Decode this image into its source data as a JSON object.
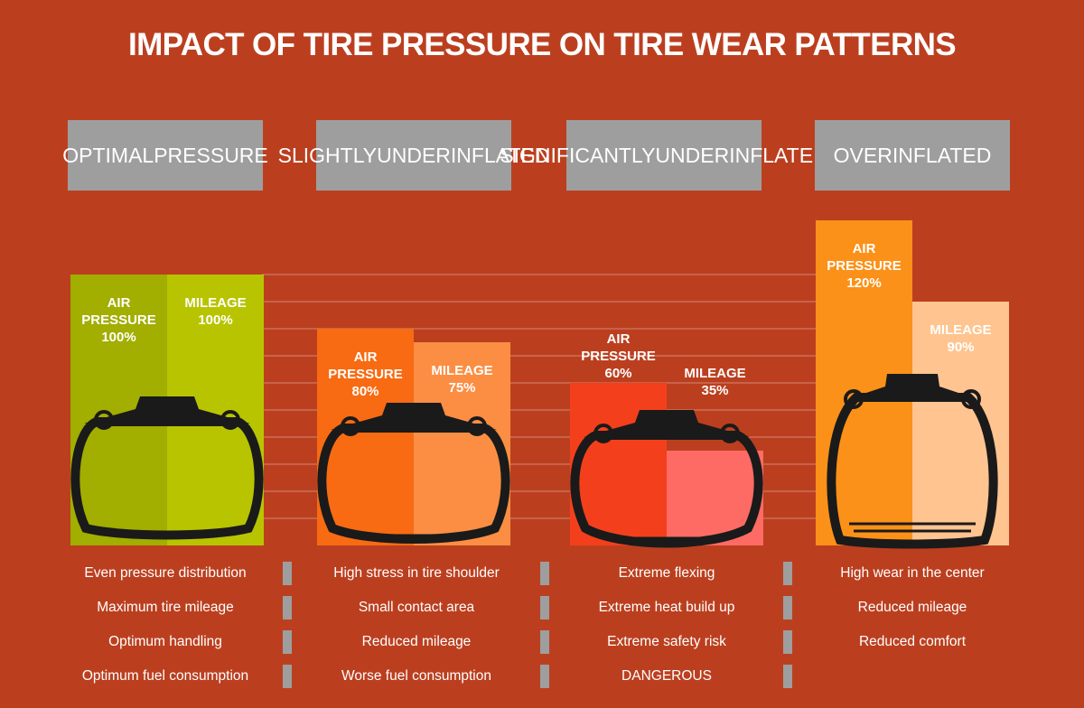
{
  "title": "IMPACT OF TIRE PRESSURE ON TIRE WEAR PATTERNS",
  "categories": [
    {
      "header": [
        "OPTIMAL",
        "PRESSURE"
      ],
      "air_label": "AIR\nPRESSURE\n100%",
      "mileage_label": "MILEAGE\n100%",
      "bullets": [
        "Even pressure distribution",
        "Maximum tire mileage",
        "Optimum handling",
        "Optimum fuel consumption"
      ]
    },
    {
      "header": [
        "SLIGHTLY",
        "UNDERINFLATED"
      ],
      "air_label": "AIR\nPRESSURE\n80%",
      "mileage_label": "MILEAGE\n75%",
      "bullets": [
        "High stress in tire shoulder",
        "Small contact area",
        "Reduced mileage",
        "Worse fuel consumption"
      ]
    },
    {
      "header": [
        "SIGNIFICANTLY",
        "UNDERINFLATED"
      ],
      "air_label": "AIR\nPRESSURE\n60%",
      "mileage_label": "MILEAGE\n35%",
      "bullets": [
        "Extreme flexing",
        "Extreme heat build up",
        "Extreme safety risk",
        "DANGEROUS"
      ]
    },
    {
      "header": [
        "OVERINFLATED"
      ],
      "air_label": "AIR\nPRESSURE\n120%",
      "mileage_label": "MILEAGE\n90%",
      "bullets": [
        "High wear in the center",
        "Reduced mileage",
        "Reduced comfort"
      ]
    }
  ],
  "chart_data": {
    "type": "bar",
    "categories": [
      "OPTIMAL PRESSURE",
      "SLIGHTLY UNDERINFLATED",
      "SIGNIFICANTLY UNDERINFLATED",
      "OVERINFLATED"
    ],
    "series": [
      {
        "name": "AIR PRESSURE",
        "values": [
          100,
          80,
          60,
          120
        ],
        "unit": "%",
        "colors": [
          "#a2ae00",
          "#f86b12",
          "#f43f1c",
          "#fb9118"
        ]
      },
      {
        "name": "MILEAGE",
        "values": [
          100,
          75,
          35,
          90
        ],
        "unit": "%",
        "colors": [
          "#b8c400",
          "#fb8e43",
          "#fd6b64",
          "#ffc48f"
        ]
      }
    ],
    "ylim": [
      0,
      120
    ],
    "grid": true
  }
}
